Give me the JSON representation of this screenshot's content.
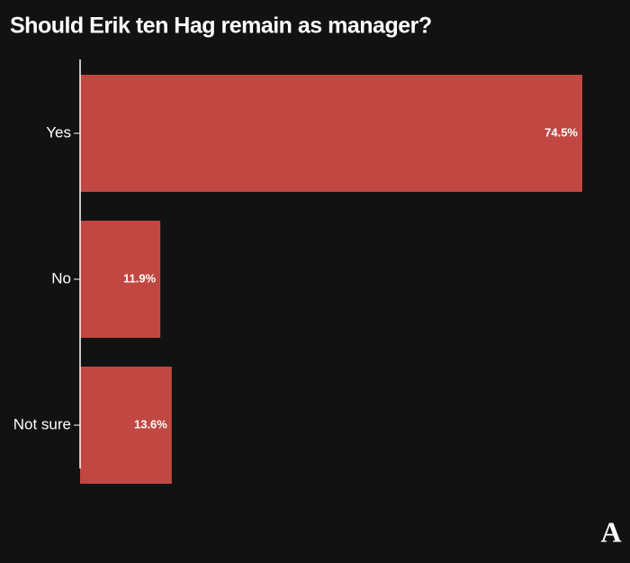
{
  "chart_data": {
    "type": "barh",
    "title": "Should Erik ten Hag remain as manager?",
    "categories": [
      "Yes",
      "No",
      "Not sure"
    ],
    "values": [
      74.5,
      11.9,
      13.6
    ],
    "value_labels": [
      "74.5%",
      "11.9%",
      "13.6%"
    ],
    "color": "#c14842"
  },
  "logo": "A"
}
